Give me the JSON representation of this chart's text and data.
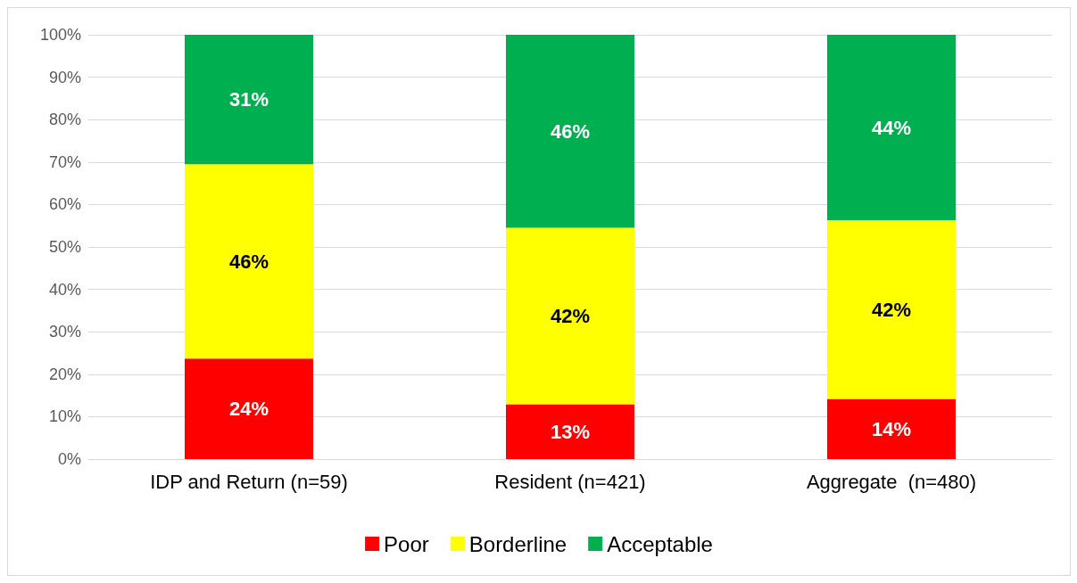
{
  "chart_data": {
    "type": "bar",
    "stacked": true,
    "categories": [
      "IDP and Return (n=59)",
      "Resident (n=421)",
      "Aggregate  (n=480)"
    ],
    "series": [
      {
        "name": "Poor",
        "color": "#ff0000",
        "values": [
          23.7,
          12.9,
          14.2
        ],
        "value_labels": [
          "24%",
          "13%",
          "14%"
        ]
      },
      {
        "name": "Borderline",
        "color": "#ffff00",
        "values": [
          45.8,
          41.6,
          42.1
        ],
        "value_labels": [
          "46%",
          "42%",
          "42%"
        ]
      },
      {
        "name": "Acceptable",
        "color": "#00b050",
        "values": [
          30.5,
          45.5,
          43.7
        ],
        "value_labels": [
          "31%",
          "46%",
          "44%"
        ]
      }
    ],
    "ylim": [
      0,
      100
    ],
    "yticks": [
      {
        "value": 0,
        "label": "0%"
      },
      {
        "value": 10,
        "label": "10%"
      },
      {
        "value": 20,
        "label": "20%"
      },
      {
        "value": 30,
        "label": "30%"
      },
      {
        "value": 40,
        "label": "40%"
      },
      {
        "value": 50,
        "label": "50%"
      },
      {
        "value": 60,
        "label": "60%"
      },
      {
        "value": 70,
        "label": "70%"
      },
      {
        "value": 80,
        "label": "80%"
      },
      {
        "value": 90,
        "label": "90%"
      },
      {
        "value": 100,
        "label": "100%"
      }
    ],
    "grid": "y",
    "legend": "bottom"
  }
}
